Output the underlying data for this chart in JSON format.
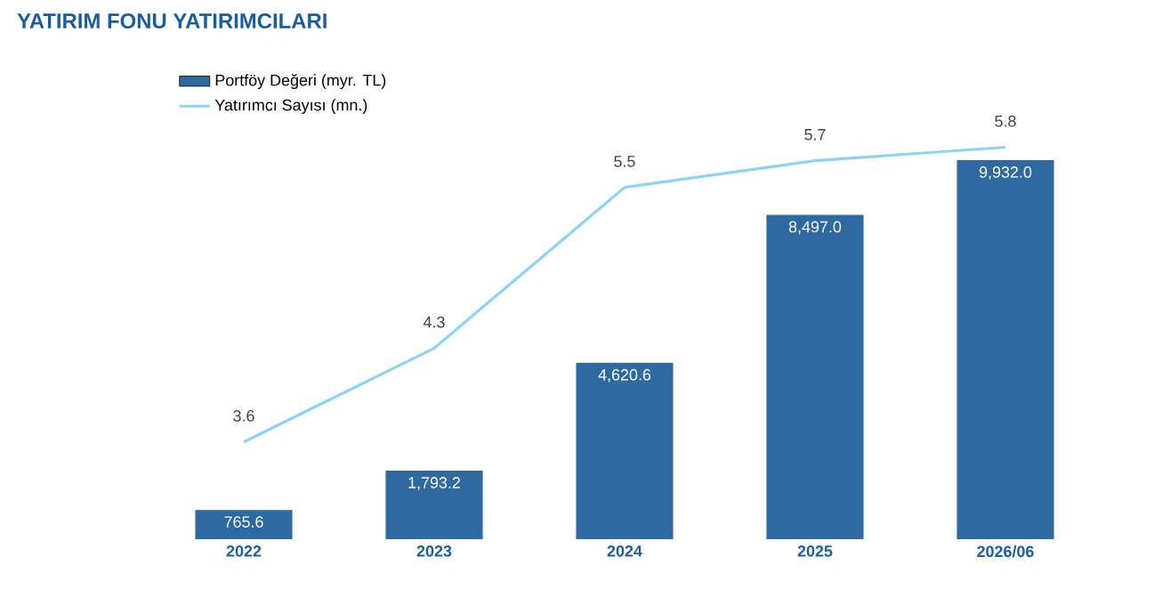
{
  "chart_data": {
    "type": "bar",
    "title": "YATIRIM FONU YATIRIMCILARI",
    "categories": [
      "2022",
      "2023",
      "2024",
      "2025",
      "2026/06"
    ],
    "series": [
      {
        "name": "Portföy Değeri (myr. TL)",
        "color": "#2e6aa0",
        "values": [
          765.6,
          1793.2,
          4620.6,
          8497.0,
          9932.0
        ],
        "value_labels": [
          "765.6",
          "1,793.2",
          "4,620.6",
          "8,497.0",
          "9,932.0"
        ]
      },
      {
        "name": "Yatırımcı Sayısı (mn.)",
        "type": "line",
        "axis": "y2",
        "color": "#8dd3f3",
        "values": [
          3.6,
          4.3,
          5.5,
          5.7,
          5.8
        ],
        "value_labels": [
          "3.6",
          "4.3",
          "5.5",
          "5.7",
          "5.8"
        ]
      }
    ],
    "legend": "top left",
    "marker": "none"
  }
}
